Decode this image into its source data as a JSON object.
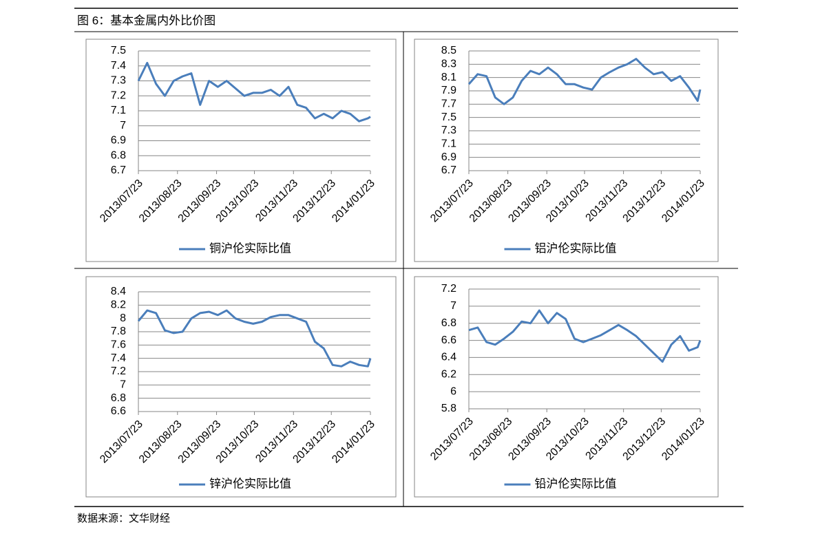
{
  "header": {
    "title": "图 6：基本金属内外比价图"
  },
  "footer": {
    "source": "数据来源：文华财经"
  },
  "chart_data": [
    {
      "type": "line",
      "x": [
        "2013/07/23",
        "2013/07/30",
        "2013/08/06",
        "2013/08/13",
        "2013/08/20",
        "2013/08/27",
        "2013/09/03",
        "2013/09/10",
        "2013/09/17",
        "2013/09/24",
        "2013/10/01",
        "2013/10/08",
        "2013/10/15",
        "2013/10/22",
        "2013/10/29",
        "2013/11/05",
        "2013/11/12",
        "2013/11/19",
        "2013/11/26",
        "2013/12/03",
        "2013/12/10",
        "2013/12/17",
        "2013/12/24",
        "2013/12/31",
        "2014/01/07",
        "2014/01/14",
        "2014/01/21",
        "2014/01/23"
      ],
      "series": [
        {
          "name": "铜沪伦实际比值",
          "color": "#4a7ebb",
          "values": [
            7.3,
            7.42,
            7.28,
            7.2,
            7.3,
            7.33,
            7.35,
            7.14,
            7.3,
            7.26,
            7.3,
            7.25,
            7.2,
            7.22,
            7.22,
            7.24,
            7.2,
            7.26,
            7.14,
            7.12,
            7.05,
            7.08,
            7.05,
            7.1,
            7.08,
            7.03,
            7.05,
            7.06
          ]
        }
      ],
      "ylim": [
        6.7,
        7.5
      ],
      "yticks": [
        6.7,
        6.8,
        6.9,
        7,
        7.1,
        7.2,
        7.3,
        7.4,
        7.5
      ],
      "xticks": [
        "2013/07/23",
        "2013/08/23",
        "2013/09/23",
        "2013/10/23",
        "2013/11/23",
        "2013/12/23",
        "2014/01/23"
      ],
      "grid": true,
      "legend": "bottom"
    },
    {
      "type": "line",
      "x": [
        "2013/07/23",
        "2013/07/30",
        "2013/08/06",
        "2013/08/13",
        "2013/08/20",
        "2013/08/27",
        "2013/09/03",
        "2013/09/10",
        "2013/09/17",
        "2013/09/24",
        "2013/10/01",
        "2013/10/08",
        "2013/10/15",
        "2013/10/22",
        "2013/10/29",
        "2013/11/05",
        "2013/11/12",
        "2013/11/19",
        "2013/11/26",
        "2013/12/03",
        "2013/12/10",
        "2013/12/17",
        "2013/12/24",
        "2013/12/31",
        "2014/01/07",
        "2014/01/14",
        "2014/01/21",
        "2014/01/23"
      ],
      "series": [
        {
          "name": "铝沪伦实际比值",
          "color": "#4a7ebb",
          "values": [
            8.0,
            8.15,
            8.12,
            7.8,
            7.7,
            7.8,
            8.05,
            8.2,
            8.15,
            8.25,
            8.15,
            8.0,
            8.0,
            7.95,
            7.92,
            8.1,
            8.18,
            8.25,
            8.3,
            8.38,
            8.25,
            8.15,
            8.18,
            8.05,
            8.12,
            7.95,
            7.75,
            7.92
          ]
        }
      ],
      "ylim": [
        6.7,
        8.5
      ],
      "yticks": [
        6.7,
        6.9,
        7.1,
        7.3,
        7.5,
        7.7,
        7.9,
        8.1,
        8.3,
        8.5
      ],
      "xticks": [
        "2013/07/23",
        "2013/08/23",
        "2013/09/23",
        "2013/10/23",
        "2013/11/23",
        "2013/12/23",
        "2014/01/23"
      ],
      "grid": true,
      "legend": "bottom"
    },
    {
      "type": "line",
      "x": [
        "2013/07/23",
        "2013/07/30",
        "2013/08/06",
        "2013/08/13",
        "2013/08/20",
        "2013/08/27",
        "2013/09/03",
        "2013/09/10",
        "2013/09/17",
        "2013/09/24",
        "2013/10/01",
        "2013/10/08",
        "2013/10/15",
        "2013/10/22",
        "2013/10/29",
        "2013/11/05",
        "2013/11/12",
        "2013/11/19",
        "2013/11/26",
        "2013/12/03",
        "2013/12/10",
        "2013/12/17",
        "2013/12/24",
        "2013/12/31",
        "2014/01/07",
        "2014/01/14",
        "2014/01/21",
        "2014/01/23"
      ],
      "series": [
        {
          "name": "锌沪伦实际比值",
          "color": "#4a7ebb",
          "values": [
            7.96,
            8.12,
            8.08,
            7.82,
            7.78,
            7.8,
            8.0,
            8.08,
            8.1,
            8.05,
            8.12,
            8.0,
            7.95,
            7.92,
            7.95,
            8.02,
            8.05,
            8.05,
            8.0,
            7.95,
            7.65,
            7.55,
            7.3,
            7.28,
            7.35,
            7.3,
            7.28,
            7.4
          ]
        }
      ],
      "ylim": [
        6.6,
        8.4
      ],
      "yticks": [
        6.6,
        6.8,
        7,
        7.2,
        7.4,
        7.6,
        7.8,
        8,
        8.2,
        8.4
      ],
      "xticks": [
        "2013/07/23",
        "2013/08/23",
        "2013/09/23",
        "2013/10/23",
        "2013/11/23",
        "2013/12/23",
        "2014/01/23"
      ],
      "grid": true,
      "legend": "bottom"
    },
    {
      "type": "line",
      "x": [
        "2013/07/23",
        "2013/07/30",
        "2013/08/06",
        "2013/08/13",
        "2013/08/20",
        "2013/08/27",
        "2013/09/03",
        "2013/09/10",
        "2013/09/17",
        "2013/09/24",
        "2013/10/01",
        "2013/10/08",
        "2013/10/15",
        "2013/10/22",
        "2013/10/29",
        "2013/11/05",
        "2013/11/12",
        "2013/11/19",
        "2013/11/26",
        "2013/12/03",
        "2013/12/10",
        "2013/12/17",
        "2013/12/24",
        "2013/12/31",
        "2014/01/07",
        "2014/01/14",
        "2014/01/21",
        "2014/01/23"
      ],
      "series": [
        {
          "name": "铅沪伦实际比值",
          "color": "#4a7ebb",
          "values": [
            6.72,
            6.75,
            6.58,
            6.55,
            6.62,
            6.7,
            6.82,
            6.8,
            6.95,
            6.8,
            6.92,
            6.85,
            6.62,
            6.58,
            6.62,
            6.66,
            6.72,
            6.78,
            6.72,
            6.65,
            6.55,
            6.45,
            6.35,
            6.55,
            6.65,
            6.48,
            6.52,
            6.6
          ]
        }
      ],
      "ylim": [
        5.8,
        7.2
      ],
      "yticks": [
        5.8,
        6,
        6.2,
        6.4,
        6.6,
        6.8,
        7,
        7.2
      ],
      "xticks": [
        "2013/07/23",
        "2013/08/23",
        "2013/09/23",
        "2013/10/23",
        "2013/11/23",
        "2013/12/23",
        "2014/01/23"
      ],
      "grid": true,
      "legend": "bottom"
    }
  ]
}
